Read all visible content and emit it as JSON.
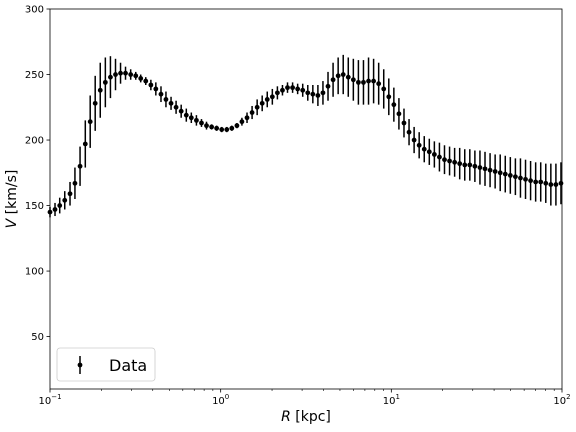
{
  "chart_data": {
    "type": "scatter",
    "title": "",
    "xlabel": "R [kpc]",
    "xlabel_var": "R",
    "xlabel_unit": " [kpc]",
    "ylabel": "V [km/s]",
    "ylabel_var": "V",
    "ylabel_unit": " [km/s]",
    "xscale": "log",
    "xlim": [
      0.1,
      100
    ],
    "ylim": [
      10,
      300
    ],
    "xticks": [
      {
        "value": 0.1,
        "base": "10",
        "exp": "−1"
      },
      {
        "value": 1,
        "base": "10",
        "exp": "0"
      },
      {
        "value": 10,
        "base": "10",
        "exp": "1"
      },
      {
        "value": 100,
        "base": "10",
        "exp": "2"
      }
    ],
    "yticks": [
      50,
      100,
      150,
      200,
      250,
      300
    ],
    "grid": false,
    "legend": {
      "position": "lower-left",
      "entries": [
        "Data"
      ]
    },
    "marker_color": "#000000",
    "series": [
      {
        "name": "Data",
        "x": [
          0.1,
          0.107,
          0.114,
          0.122,
          0.131,
          0.14,
          0.15,
          0.161,
          0.172,
          0.184,
          0.197,
          0.211,
          0.226,
          0.242,
          0.259,
          0.277,
          0.297,
          0.318,
          0.34,
          0.364,
          0.39,
          0.417,
          0.447,
          0.478,
          0.512,
          0.548,
          0.587,
          0.629,
          0.673,
          0.721,
          0.772,
          0.826,
          0.885,
          0.947,
          1.014,
          1.086,
          1.162,
          1.245,
          1.332,
          1.427,
          1.528,
          1.636,
          1.751,
          1.875,
          2.008,
          2.15,
          2.302,
          2.464,
          2.639,
          2.825,
          3.025,
          3.239,
          3.468,
          3.713,
          3.975,
          4.256,
          4.557,
          4.88,
          5.225,
          5.594,
          5.99,
          6.413,
          6.866,
          7.352,
          7.872,
          8.429,
          9.025,
          9.663,
          10.346,
          11.078,
          11.861,
          12.7,
          13.598,
          14.559,
          15.589,
          16.691,
          17.871,
          19.135,
          20.488,
          21.937,
          23.488,
          25.149,
          26.927,
          28.831,
          30.87,
          33.053,
          35.39,
          37.893,
          40.572,
          43.441,
          46.513,
          49.802,
          53.324,
          57.094,
          61.131,
          65.454,
          70.082,
          75.038,
          80.344,
          86.025,
          92.108,
          98.621
        ],
        "y": [
          145,
          147,
          150,
          154,
          159,
          167,
          180,
          197,
          214,
          228,
          238,
          244,
          248,
          250,
          251,
          251,
          250,
          249,
          247,
          245,
          242,
          239,
          235,
          231,
          228,
          225,
          222,
          219,
          217,
          215,
          213,
          211,
          210,
          209,
          208,
          208,
          209,
          211,
          214,
          217,
          221,
          225,
          228,
          231,
          233,
          236,
          238,
          240,
          240,
          239,
          238,
          236,
          235,
          234,
          236,
          241,
          246,
          249,
          250,
          248,
          246,
          244,
          244,
          245,
          245,
          243,
          239,
          233,
          227,
          220,
          213,
          206,
          200,
          196,
          193,
          191,
          189,
          187,
          185,
          184,
          183,
          182,
          181,
          181,
          180,
          179,
          178,
          177,
          176,
          175,
          174,
          173,
          172,
          171,
          170,
          169,
          168,
          168,
          167,
          166,
          166,
          167
        ],
        "err": [
          4,
          5,
          6,
          7,
          9,
          12,
          15,
          18,
          20,
          21,
          21,
          19,
          16,
          12,
          8,
          5,
          4,
          3,
          3,
          3,
          4,
          5,
          6,
          6,
          5,
          5,
          5,
          5,
          4,
          4,
          3,
          3,
          2,
          2,
          2,
          2,
          2,
          2,
          3,
          4,
          5,
          6,
          6,
          6,
          6,
          5,
          4,
          4,
          4,
          4,
          5,
          6,
          7,
          8,
          9,
          11,
          13,
          14,
          15,
          15,
          16,
          17,
          17,
          18,
          17,
          16,
          15,
          14,
          13,
          12,
          11,
          10,
          10,
          10,
          10,
          10,
          10,
          11,
          11,
          11,
          11,
          12,
          12,
          12,
          12,
          13,
          13,
          13,
          13,
          14,
          14,
          14,
          14,
          15,
          15,
          15,
          15,
          15,
          15,
          16,
          16,
          16
        ]
      }
    ]
  }
}
